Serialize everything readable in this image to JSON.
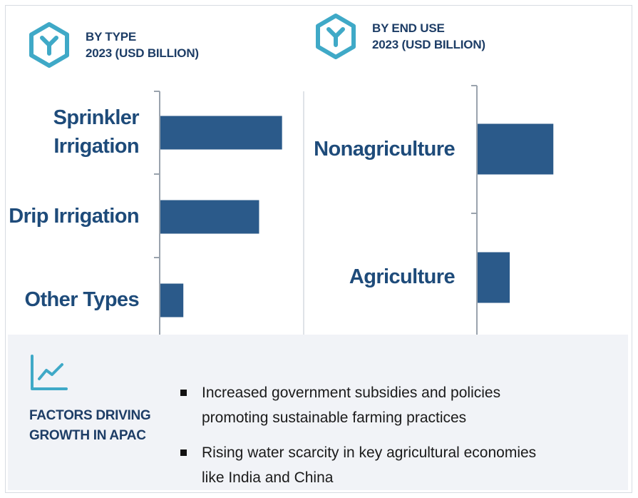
{
  "panels": [
    {
      "icon": "hexagon-y-icon",
      "heading_line1": "BY TYPE",
      "heading_line2": "2023 (USD BILLION)"
    },
    {
      "icon": "hexagon-y-icon",
      "heading_line1": "BY END USE",
      "heading_line2": "2023 (USD BILLION)"
    }
  ],
  "chart_data": [
    {
      "type": "bar",
      "orientation": "horizontal",
      "categories": [
        "Sprinkler Irrigation",
        "Drip Irrigation",
        "Other Types"
      ],
      "values": [
        5.3,
        4.3,
        1.0
      ],
      "xlim": [
        0,
        6
      ],
      "grid": false,
      "color": "#2b5a8a"
    },
    {
      "type": "bar",
      "orientation": "horizontal",
      "categories": [
        "Nonagriculture",
        "Agriculture"
      ],
      "values": [
        3.3,
        1.4
      ],
      "xlim": [
        0,
        6
      ],
      "grid": false,
      "color": "#2b5a8a"
    }
  ],
  "footer": {
    "icon": "line-chart-trend-icon",
    "title_line1": "FACTORS DRIVING",
    "title_line2": "GROWTH IN APAC",
    "bullets": [
      {
        "line1": "Increased government subsidies and policies",
        "line2": "promoting sustainable farming practices"
      },
      {
        "line1": "Rising water scarcity in key agricultural economies",
        "line2": "like India and China"
      }
    ]
  },
  "colors": {
    "accent": "#3fa9c7",
    "heading": "#1d3d66",
    "label": "#1e4b7a",
    "bar": "#2b5a8a",
    "footer_bg": "#f1f3f7"
  }
}
